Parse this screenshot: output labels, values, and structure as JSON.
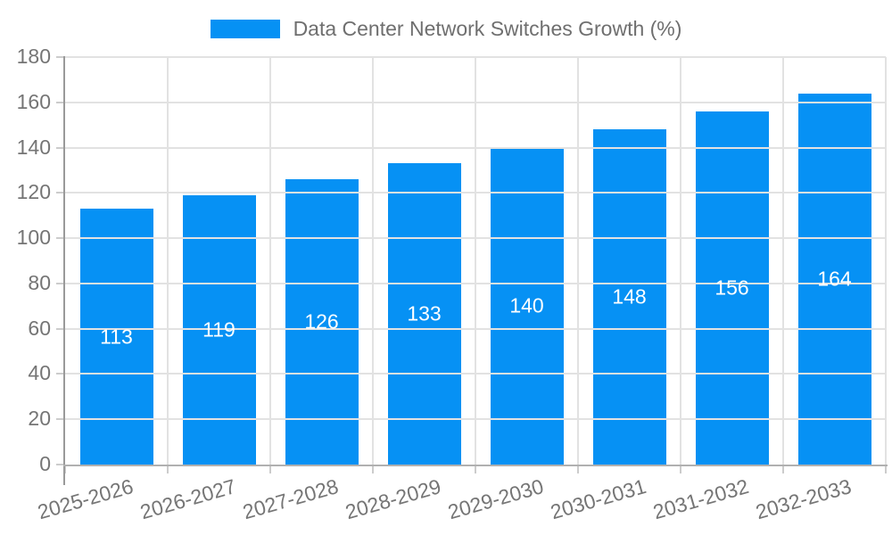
{
  "legend": {
    "label": "Data Center Network Switches Growth (%)"
  },
  "chart_data": {
    "type": "bar",
    "title": "Data Center Network Switches Growth (%)",
    "categories": [
      "2025-2026",
      "2026-2027",
      "2027-2028",
      "2028-2029",
      "2029-2030",
      "2030-2031",
      "2031-2032",
      "2032-2033"
    ],
    "series": [
      {
        "name": "Data Center Network Switches Growth (%)",
        "values": [
          113,
          119,
          126,
          133,
          140,
          148,
          156,
          164
        ]
      }
    ],
    "value_labels": [
      113,
      119,
      126,
      133,
      140,
      148,
      156,
      164
    ],
    "xlabel": "",
    "ylabel": "",
    "ylim": [
      0,
      180
    ],
    "yticks": [
      0,
      20,
      40,
      60,
      80,
      100,
      120,
      140,
      160,
      180
    ],
    "grid": "on",
    "legend_position": "top-center",
    "x_tick_rotation_deg": -16,
    "colors": {
      "bar": "#0691f4",
      "value_label": "#ffffff",
      "tick_label": "#757575",
      "title": "#6f6f6f",
      "grid": "#e2e2e2",
      "tick_mark": "#cccccc",
      "left_spine": "#9a9a9a",
      "bottom_spine": "#b0b0b0",
      "background": "#ffffff"
    }
  }
}
